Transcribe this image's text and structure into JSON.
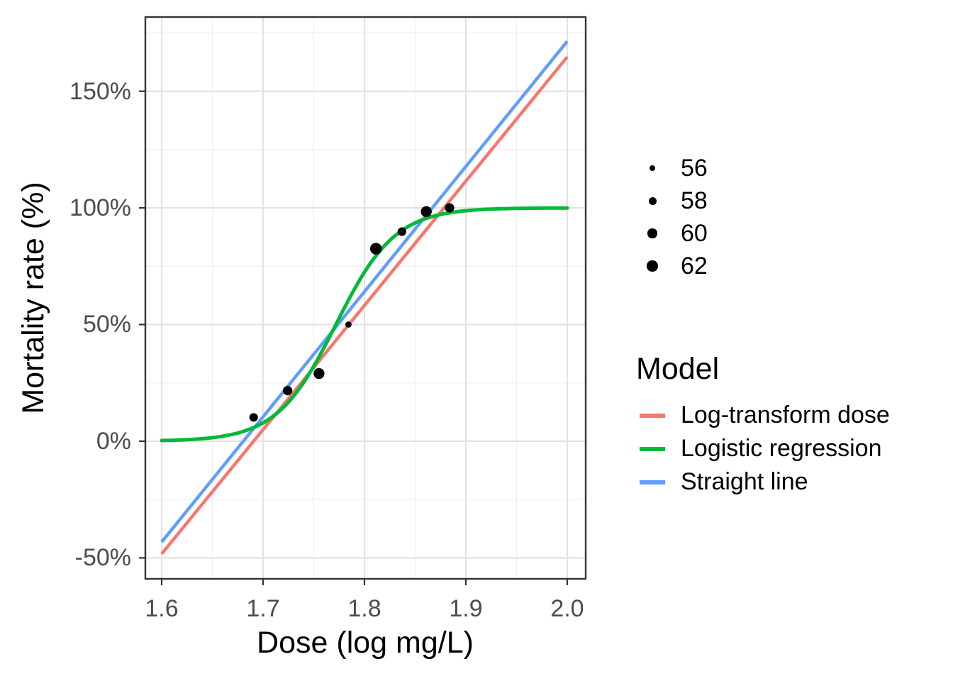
{
  "figure": {
    "background": "#FFFFFF"
  },
  "chart_data": {
    "type": "scatter",
    "title": "",
    "xlabel": "Dose (log mg/L)",
    "ylabel": "Mortality rate (%)",
    "grid": {
      "major_color": "#E3E3E3",
      "minor_color": "#EFEFEF",
      "grid_on": true
    },
    "panel_border_color": "#333333",
    "tick_color": "#333333",
    "point_color": "#000000",
    "legend_position": "right",
    "x_axis": {
      "range": [
        1.6,
        2.0
      ],
      "ticks": [
        {
          "value": 1.6,
          "label": "1.6"
        },
        {
          "value": 1.7,
          "label": "1.7"
        },
        {
          "value": 1.8,
          "label": "1.8"
        },
        {
          "value": 1.9,
          "label": "1.9"
        },
        {
          "value": 2.0,
          "label": "2.0"
        }
      ],
      "minor": [
        1.65,
        1.75,
        1.85,
        1.95
      ]
    },
    "y_axis": {
      "range_pct": [
        -50,
        150
      ],
      "ticks": [
        {
          "value": 150,
          "label": "150%"
        },
        {
          "value": 100,
          "label": "100%"
        },
        {
          "value": 50,
          "label": "50%"
        },
        {
          "value": 0,
          "label": "0%"
        },
        {
          "value": -50,
          "label": "-50%"
        }
      ],
      "minor": [
        -25,
        25,
        75,
        125,
        175
      ]
    },
    "points": [
      {
        "dose_log": 1.6907,
        "mortality_pct": 10.2,
        "n": 59
      },
      {
        "dose_log": 1.7242,
        "mortality_pct": 21.7,
        "n": 60
      },
      {
        "dose_log": 1.7552,
        "mortality_pct": 29.0,
        "n": 62
      },
      {
        "dose_log": 1.7842,
        "mortality_pct": 50.0,
        "n": 56
      },
      {
        "dose_log": 1.8113,
        "mortality_pct": 82.5,
        "n": 63
      },
      {
        "dose_log": 1.8369,
        "mortality_pct": 89.8,
        "n": 59
      },
      {
        "dose_log": 1.861,
        "mortality_pct": 98.4,
        "n": 62
      },
      {
        "dose_log": 1.8839,
        "mortality_pct": 100.0,
        "n": 60
      }
    ],
    "size_scale": {
      "n_ref": 56,
      "r_ref": 4.4,
      "r_per_n": 0.55
    },
    "lines": [
      {
        "id": "log-transform-dose",
        "label": "Log-transform dose",
        "color": "#F8766D",
        "kind": "linear",
        "x": [
          1.6,
          2.0
        ],
        "y_pct": [
          -48.3,
          164.7
        ]
      },
      {
        "id": "straight-line",
        "label": "Straight line",
        "color": "#619CFF",
        "kind": "linear",
        "x": [
          1.6,
          2.0
        ],
        "y_pct": [
          -43.2,
          171.4
        ]
      },
      {
        "id": "logistic-regression",
        "label": "Logistic regression",
        "color": "#00BA38",
        "kind": "logistic",
        "x": [
          1.6,
          2.0
        ],
        "intercept": -60.72,
        "slope": 34.27
      }
    ],
    "size_legend": {
      "title": "",
      "entries": [
        {
          "label": "56",
          "r": 4.4
        },
        {
          "label": "58",
          "r": 5.5
        },
        {
          "label": "60",
          "r": 6.6
        },
        {
          "label": "62",
          "r": 7.7
        }
      ]
    },
    "model_legend": {
      "title": "Model",
      "entries": [
        {
          "label": "Log-transform dose",
          "color": "#F8766D"
        },
        {
          "label": "Logistic regression",
          "color": "#00BA38"
        },
        {
          "label": "Straight line",
          "color": "#619CFF"
        }
      ]
    }
  }
}
